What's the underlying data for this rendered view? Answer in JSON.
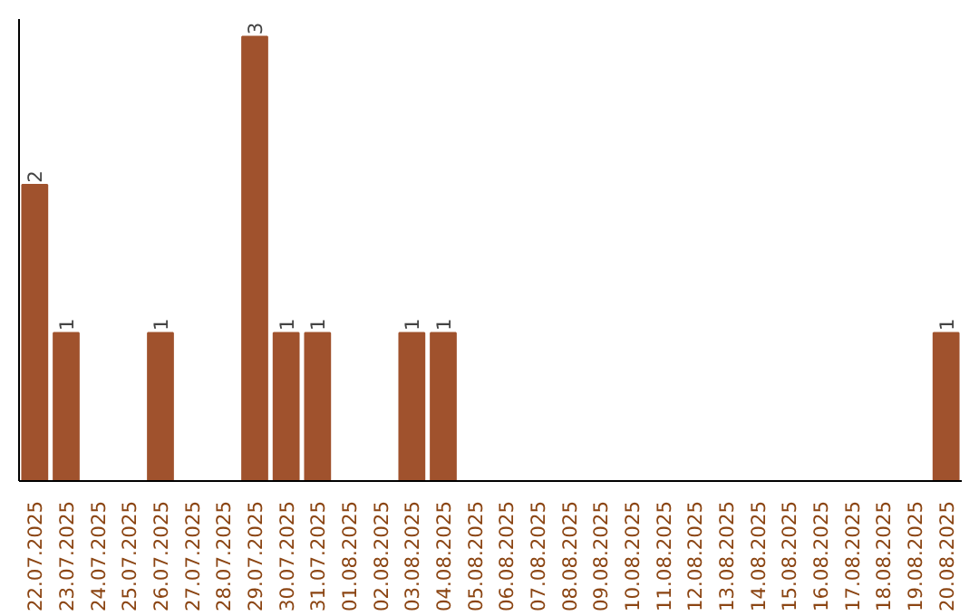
{
  "chart_data": {
    "type": "bar",
    "categories": [
      "22.07.2025",
      "23.07.2025",
      "24.07.2025",
      "25.07.2025",
      "26.07.2025",
      "27.07.2025",
      "28.07.2025",
      "29.07.2025",
      "30.07.2025",
      "31.07.2025",
      "01.08.2025",
      "02.08.2025",
      "03.08.2025",
      "04.08.2025",
      "05.08.2025",
      "06.08.2025",
      "07.08.2025",
      "08.08.2025",
      "09.08.2025",
      "10.08.2025",
      "11.08.2025",
      "12.08.2025",
      "13.08.2025",
      "14.08.2025",
      "15.08.2025",
      "16.08.2025",
      "17.08.2025",
      "18.08.2025",
      "19.08.2025",
      "20.08.2025"
    ],
    "values": [
      2,
      1,
      0,
      0,
      1,
      0,
      0,
      3,
      1,
      1,
      0,
      0,
      1,
      1,
      0,
      0,
      0,
      0,
      0,
      0,
      0,
      0,
      0,
      0,
      0,
      0,
      0,
      0,
      0,
      1
    ],
    "value_labels": [
      "2",
      "1",
      null,
      null,
      "1",
      null,
      null,
      "3",
      "1",
      "1",
      null,
      null,
      "1",
      "1",
      null,
      null,
      null,
      null,
      null,
      null,
      null,
      null,
      null,
      null,
      null,
      null,
      null,
      null,
      null,
      "1"
    ],
    "color": "#a0522d",
    "grid": false
  }
}
